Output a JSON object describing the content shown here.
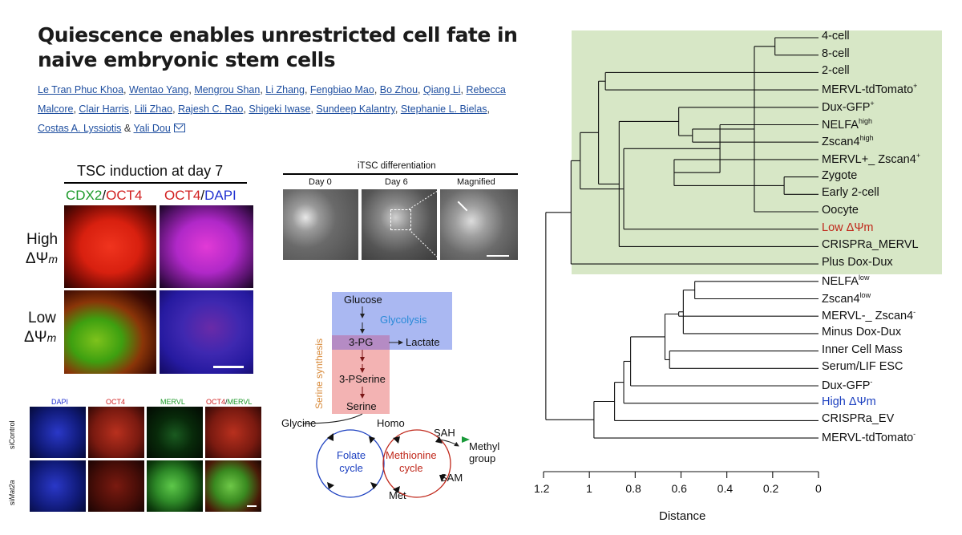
{
  "paper": {
    "title": "Quiescence enables unrestricted cell fate in naive embryonic stem cells",
    "authors": [
      "Le Tran Phuc Khoa",
      "Wentao Yang",
      "Mengrou Shan",
      "Li Zhang",
      "Fengbiao Mao",
      "Bo Zhou",
      "Qiang Li",
      "Rebecca Malcore",
      "Clair Harris",
      "Lili Zhao",
      "Rajesh C. Rao",
      "Shigeki Iwase",
      "Sundeep Kalantry",
      "Stephanie L. Bielas",
      "Costas A. Lyssiotis",
      "Yali Dou"
    ],
    "and_word": "&"
  },
  "tsc_panel": {
    "title": "TSC induction at day 7",
    "col1_a": "CDX2",
    "col1_sep": "/",
    "col1_b": "OCT4",
    "col2_a": "OCT4",
    "col2_sep": "/",
    "col2_b": "DAPI",
    "row1_a": "High",
    "row1_b": "ΔΨ",
    "row1_sub": "m",
    "row2_a": "Low",
    "row2_b": "ΔΨ",
    "row2_sub": "m"
  },
  "itsc_panel": {
    "title": "iTSC differentiation",
    "cols": [
      "Day 0",
      "Day 6",
      "Magnified"
    ]
  },
  "merv_panel": {
    "cols": [
      "DAPI",
      "OCT4",
      "MERVL",
      "OCT4",
      "/",
      "MERVL"
    ],
    "row1": "siControl",
    "row2_prefix": "si",
    "row2_italic": "Mat2a"
  },
  "pathway": {
    "glucose": "Glucose",
    "glycolysis": "Glycolysis",
    "pg3": "3-PG",
    "lactate": "Lactate",
    "serine_synthesis": "Serine synthesis",
    "pserine": "3-PSerine",
    "serine": "Serine",
    "glycine": "Glycine",
    "homo": "Homo",
    "sah": "SAH",
    "methyl": "Methyl\ngroup",
    "folate": "Folate\ncycle",
    "methionine": "Methionine\ncycle",
    "sam": "SAM",
    "met": "Met"
  },
  "colors": {
    "green_box": "#d7e7c6",
    "glycolysis_box": "#aab8f2",
    "serine_box": "#f3b3b3",
    "red_label": "#c0281b",
    "blue_label": "#1b3fc0"
  },
  "chart_data": {
    "type": "dendrogram",
    "xlabel": "Distance",
    "xlim": [
      1.2,
      0
    ],
    "ticks": [
      "1.2",
      "1",
      "0.8",
      "0.6",
      "0.4",
      "0.2",
      "0"
    ],
    "leaves": [
      {
        "label": "4-cell",
        "sup": ""
      },
      {
        "label": "8-cell",
        "sup": ""
      },
      {
        "label": "2-cell",
        "sup": ""
      },
      {
        "label": "MERVL-tdTomato",
        "sup": "+"
      },
      {
        "label": "Dux-GFP",
        "sup": "+"
      },
      {
        "label": "NELFA",
        "sup": "high"
      },
      {
        "label": "Zscan4",
        "sup": "high"
      },
      {
        "label": "MERVL+_ Zscan4",
        "sup": "+"
      },
      {
        "label": "Zygote",
        "sup": ""
      },
      {
        "label": "Early 2-cell",
        "sup": ""
      },
      {
        "label": "Oocyte",
        "sup": ""
      },
      {
        "label": "Low ΔΨm",
        "sup": "",
        "color": "#c0281b"
      },
      {
        "label": "CRISPRa_MERVL",
        "sup": ""
      },
      {
        "label": "Plus Dox-Dux",
        "sup": ""
      },
      {
        "label": "NELFA",
        "sup": "low"
      },
      {
        "label": "Zscan4",
        "sup": "low"
      },
      {
        "label": "MERVL-_ Zscan4",
        "sup": "-"
      },
      {
        "label": "Minus Dox-Dux",
        "sup": ""
      },
      {
        "label": "Inner Cell Mass",
        "sup": ""
      },
      {
        "label": "Serum/LIF ESC",
        "sup": ""
      },
      {
        "label": "Dux-GFP",
        "sup": "-"
      },
      {
        "label": "High ΔΨm",
        "sup": "",
        "color": "#1b3fc0"
      },
      {
        "label": "CRISPRa_EV",
        "sup": ""
      },
      {
        "label": "MERVL-tdTomato",
        "sup": "-"
      }
    ],
    "merges": [
      {
        "a": 0,
        "b": 1,
        "height": 0.19
      },
      {
        "a": 8,
        "b": 9,
        "height": 0.15
      },
      {
        "a": 24,
        "b": 10,
        "height": 0.28
      },
      {
        "a": 25,
        "b": 7,
        "height": 0.63
      },
      {
        "a": 26,
        "b": 6,
        "height": 0.55
      },
      {
        "a": 27,
        "b": 5,
        "height": 0.43
      },
      {
        "a": 28,
        "b": 4,
        "height": 0.61
      },
      {
        "a": 29,
        "b": 11,
        "height": 0.85
      },
      {
        "a": 30,
        "b": 12,
        "height": 0.87
      },
      {
        "a": 3,
        "b": 2,
        "height": 0.93
      },
      {
        "a": 33,
        "b": 32,
        "height": 0.96
      },
      {
        "a": 34,
        "b": 31,
        "height": 1.04
      },
      {
        "a": 35,
        "b": 13,
        "height": 1.08
      },
      {
        "a": 14,
        "b": 15,
        "height": 0.54
      },
      {
        "a": 18,
        "b": 19,
        "height": 0.65
      },
      {
        "a": 37,
        "b": 17,
        "height": 0.59
      },
      {
        "a": 39,
        "b": 16,
        "height": 0.61
      },
      {
        "a": 40,
        "b": 38,
        "height": 0.67
      },
      {
        "a": 41,
        "b": 20,
        "height": 0.82
      },
      {
        "a": 42,
        "b": 21,
        "height": 0.85
      },
      {
        "a": 43,
        "b": 22,
        "height": 0.89
      },
      {
        "a": 44,
        "b": 23,
        "height": 0.98
      },
      {
        "a": 45,
        "b": 36,
        "height": 1.19
      }
    ]
  }
}
